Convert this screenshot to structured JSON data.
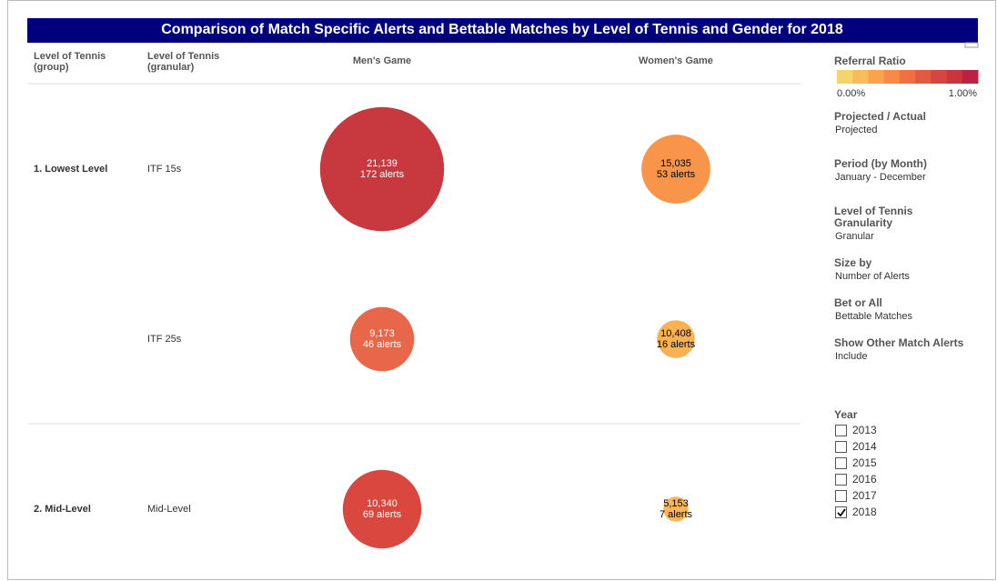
{
  "title": "Comparison of Match Specific Alerts and Bettable Matches by Level of Tennis and Gender for 2018",
  "headers": [
    "Level of Tennis (group)",
    "Level of Tennis (granular)",
    "Men's Game",
    "Women's Game"
  ],
  "rows": [
    {
      "group": "1. Lowest Level",
      "granular": "ITF 15s",
      "men": {
        "matches_label": "21,139",
        "alerts": 172,
        "alerts_label": "172 alerts",
        "color": "#c8393f",
        "text_color": "#ffffff"
      },
      "women": {
        "matches_label": "15,035",
        "alerts": 53,
        "alerts_label": "53 alerts",
        "color": "#f9954b",
        "text_color": "#000000"
      }
    },
    {
      "group": null,
      "granular": "ITF 25s",
      "men": {
        "matches_label": "9,173",
        "alerts": 46,
        "alerts_label": "46 alerts",
        "color": "#e8674a",
        "text_color": "#ffffff"
      },
      "women": {
        "matches_label": "10,408",
        "alerts": 16,
        "alerts_label": "16 alerts",
        "color": "#f8b153",
        "text_color": "#000000"
      }
    },
    {
      "group": "2. Mid-Level",
      "granular": "Mid-Level",
      "men": {
        "matches_label": "10,340",
        "alerts": 69,
        "alerts_label": "69 alerts",
        "color": "#d9473f",
        "text_color": "#ffffff"
      },
      "women": {
        "matches_label": "5,153",
        "alerts": 7,
        "alerts_label": "7 alerts",
        "color": "#f8b756",
        "text_color": "#000000"
      }
    }
  ],
  "legend": {
    "title": "Referral Ratio",
    "min_label": "0.00%",
    "max_label": "1.00%",
    "colors": [
      "#f6d36b",
      "#f7bd5c",
      "#f9a34e",
      "#f78a48",
      "#ee7044",
      "#e35a43",
      "#d64641",
      "#c9343f",
      "#bb2140"
    ]
  },
  "filters": [
    {
      "label": "Projected / Actual",
      "value": "Projected"
    },
    {
      "label": "Period (by Month)",
      "value": "January - December"
    },
    {
      "label": "Level of Tennis Granularity",
      "value": "Granular"
    },
    {
      "label": "Size by",
      "value": "Number of Alerts"
    },
    {
      "label": "Bet or All",
      "value": "Bettable Matches"
    },
    {
      "label": "Show Other Match Alerts",
      "value": "Include"
    }
  ],
  "year": {
    "label": "Year",
    "options": [
      {
        "label": "2013",
        "checked": false
      },
      {
        "label": "2014",
        "checked": false
      },
      {
        "label": "2015",
        "checked": false
      },
      {
        "label": "2016",
        "checked": false
      },
      {
        "label": "2017",
        "checked": false
      },
      {
        "label": "2018",
        "checked": true
      }
    ]
  }
}
